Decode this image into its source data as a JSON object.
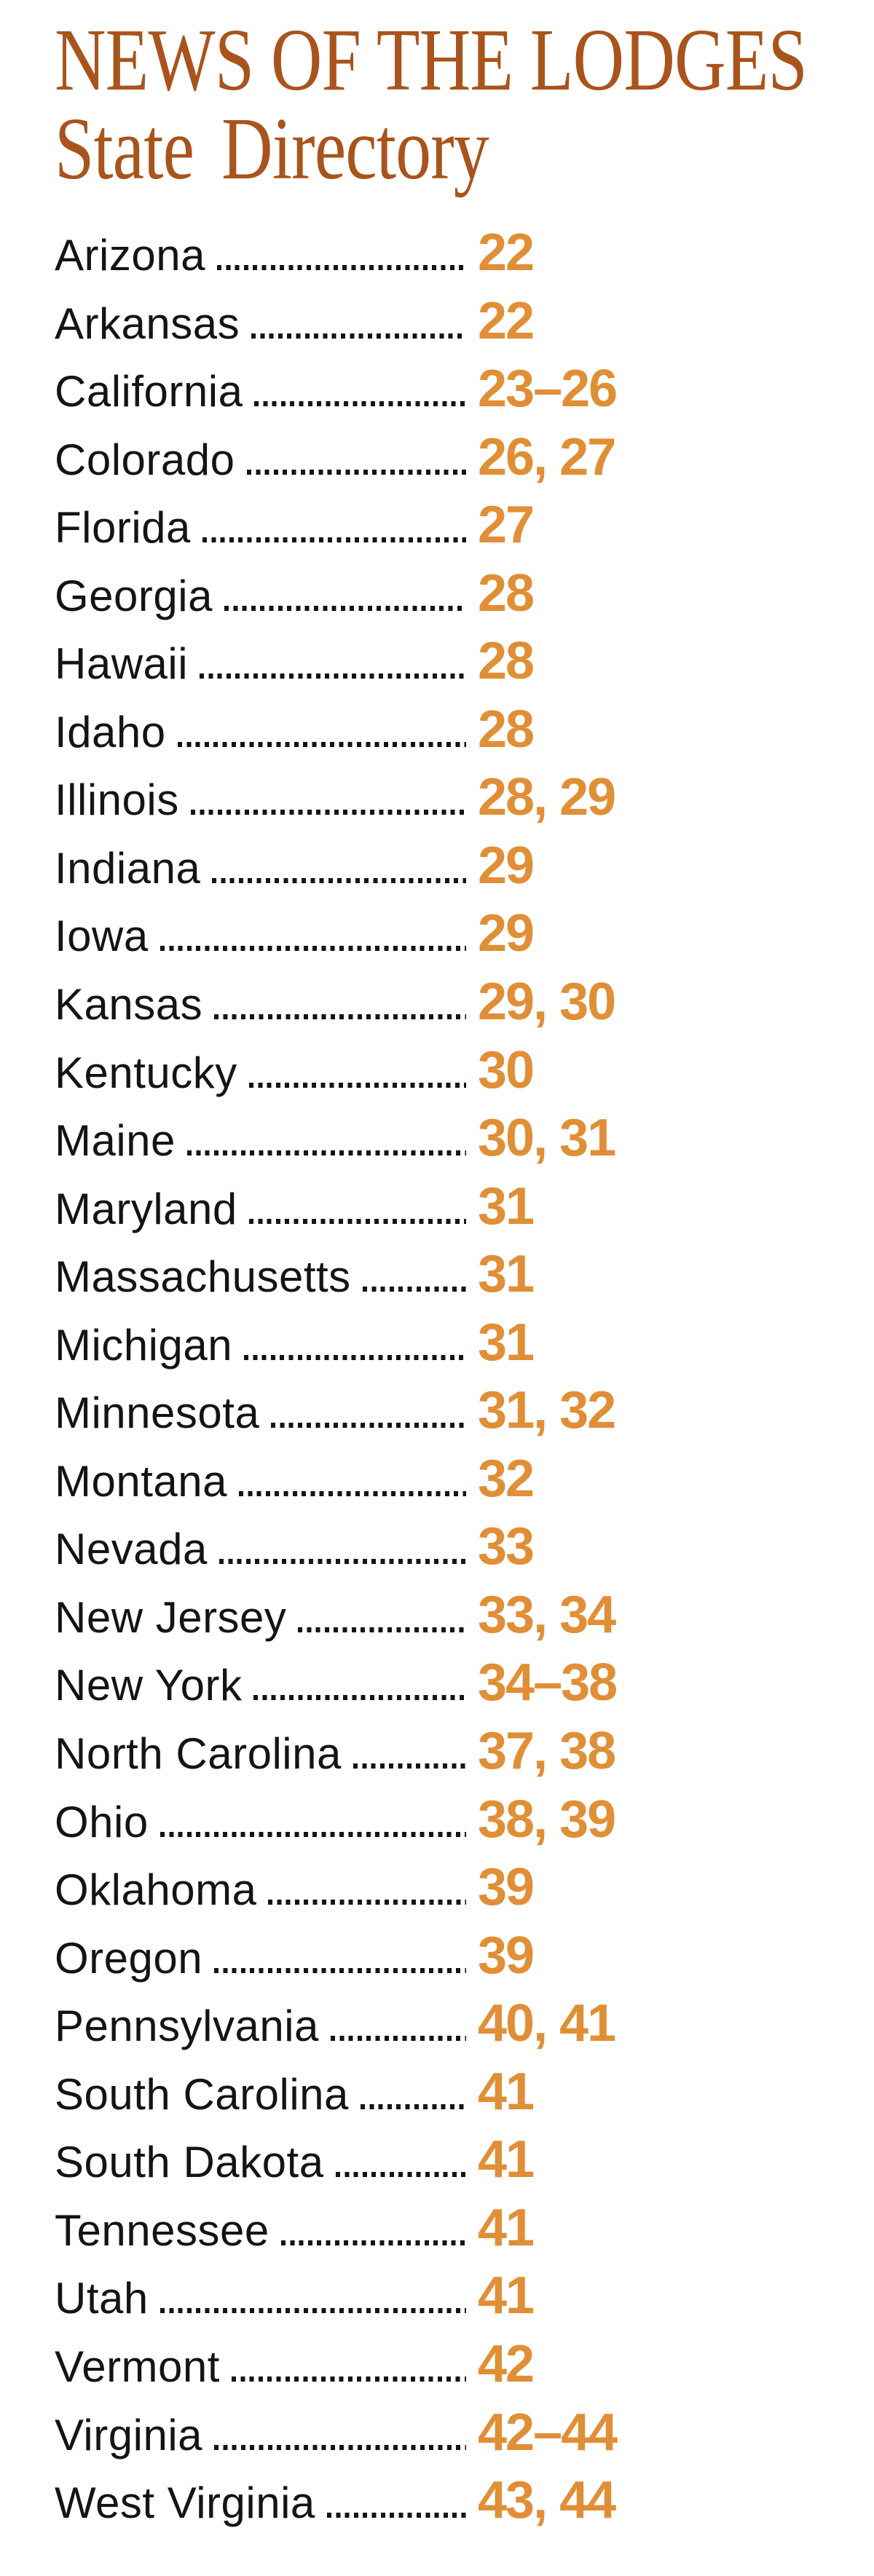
{
  "page": {
    "title_line1": "NEWS OF THE LODGES",
    "title_line2": "State Directory"
  },
  "colors": {
    "title": "#a8541c",
    "page_numbers": "#e08f37",
    "state_text": "#141414"
  },
  "directory": {
    "entries": [
      {
        "state": "Arizona",
        "pages": "22"
      },
      {
        "state": "Arkansas",
        "pages": "22"
      },
      {
        "state": "California",
        "pages": "23–26"
      },
      {
        "state": "Colorado",
        "pages": "26, 27"
      },
      {
        "state": "Florida",
        "pages": "27"
      },
      {
        "state": "Georgia",
        "pages": "28"
      },
      {
        "state": "Hawaii",
        "pages": "28"
      },
      {
        "state": "Idaho",
        "pages": "28"
      },
      {
        "state": "Illinois",
        "pages": "28, 29"
      },
      {
        "state": "Indiana",
        "pages": "29"
      },
      {
        "state": "Iowa",
        "pages": "29"
      },
      {
        "state": "Kansas",
        "pages": "29, 30"
      },
      {
        "state": "Kentucky",
        "pages": "30"
      },
      {
        "state": "Maine",
        "pages": "30, 31"
      },
      {
        "state": "Maryland",
        "pages": "31"
      },
      {
        "state": "Massachusetts",
        "pages": "31"
      },
      {
        "state": "Michigan",
        "pages": "31"
      },
      {
        "state": "Minnesota",
        "pages": "31, 32"
      },
      {
        "state": "Montana",
        "pages": "32"
      },
      {
        "state": "Nevada",
        "pages": "33"
      },
      {
        "state": "New Jersey",
        "pages": "33, 34"
      },
      {
        "state": "New York",
        "pages": "34–38"
      },
      {
        "state": "North Carolina",
        "pages": "37, 38"
      },
      {
        "state": "Ohio",
        "pages": "38, 39"
      },
      {
        "state": "Oklahoma",
        "pages": "39"
      },
      {
        "state": "Oregon",
        "pages": "39"
      },
      {
        "state": "Pennsylvania",
        "pages": "40, 41"
      },
      {
        "state": "South Carolina",
        "pages": "41"
      },
      {
        "state": "South Dakota",
        "pages": "41"
      },
      {
        "state": "Tennessee",
        "pages": "41"
      },
      {
        "state": "Utah",
        "pages": "41"
      },
      {
        "state": "Vermont",
        "pages": "42"
      },
      {
        "state": "Virginia",
        "pages": "42–44"
      },
      {
        "state": "West Virginia",
        "pages": "43, 44"
      }
    ]
  }
}
